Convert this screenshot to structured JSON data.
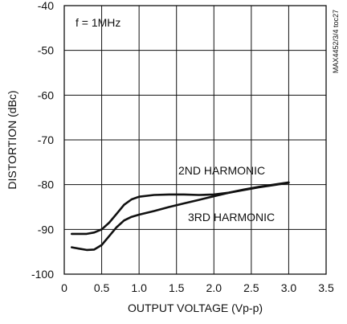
{
  "chart_data": {
    "type": "line",
    "xlabel": "OUTPUT VOLTAGE (Vp-p)",
    "ylabel": "DISTORTION (dBc)",
    "xlim": [
      0,
      3.5
    ],
    "ylim": [
      -100,
      -40
    ],
    "x_ticks": [
      "0",
      "0.5",
      "1.0",
      "1.5",
      "2.0",
      "2.5",
      "3.0",
      "3.5"
    ],
    "y_ticks": [
      "-40",
      "-50",
      "-60",
      "-70",
      "-80",
      "-90",
      "-100"
    ],
    "grid": true,
    "series": [
      {
        "name": "2ND HARMONIC",
        "x": [
          0.1,
          0.2,
          0.3,
          0.4,
          0.5,
          0.6,
          0.7,
          0.8,
          0.9,
          1.0,
          1.2,
          1.4,
          1.6,
          1.8,
          2.0,
          2.2,
          2.4,
          2.6,
          2.8,
          3.0
        ],
        "y": [
          -91.0,
          -91.0,
          -91.0,
          -90.7,
          -90.0,
          -88.5,
          -86.5,
          -84.5,
          -83.3,
          -82.7,
          -82.3,
          -82.2,
          -82.2,
          -82.3,
          -82.2,
          -81.8,
          -81.2,
          -80.6,
          -80.1,
          -79.6
        ]
      },
      {
        "name": "3RD HARMONIC",
        "x": [
          0.1,
          0.2,
          0.3,
          0.4,
          0.5,
          0.6,
          0.7,
          0.8,
          0.9,
          1.0,
          1.2,
          1.4,
          1.6,
          1.8,
          2.0,
          2.2,
          2.4,
          2.6,
          2.8,
          3.0
        ],
        "y": [
          -94.0,
          -94.3,
          -94.6,
          -94.5,
          -93.5,
          -91.5,
          -89.5,
          -88.0,
          -87.2,
          -86.7,
          -85.9,
          -85.0,
          -84.2,
          -83.4,
          -82.6,
          -81.8,
          -81.1,
          -80.5,
          -80.0,
          -79.5
        ]
      }
    ],
    "annotations": [
      "f = 1MHz",
      "2ND HARMONIC",
      "3RD HARMONIC"
    ],
    "side_code": "MAX4452/3/4 toc27",
    "line_color": "#111111"
  }
}
